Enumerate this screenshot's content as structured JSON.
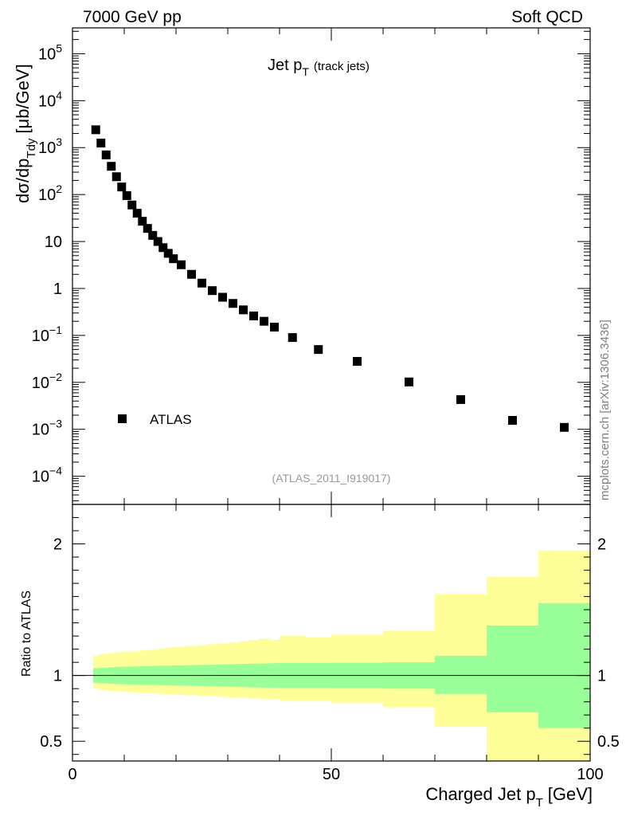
{
  "header": {
    "left": "7000 GeV pp",
    "right": "Soft QCD"
  },
  "side_note": "mcplots.cern.ch [arXiv:1306.3436]",
  "chart_data": [
    {
      "type": "scatter",
      "title": "Jet p",
      "title_subscript": "T",
      "title_suffix": "(track jets)",
      "analysis_id": "(ATLAS_2011_I919017)",
      "ylabel": "dσ/dp",
      "ylabel_subscript": "Tdy",
      "ylabel_unit": "[μb/GeV]",
      "yscale": "log",
      "xlim": [
        0,
        100
      ],
      "ylim_log10": [
        -4.6,
        5.55
      ],
      "y_tick_labels": [
        {
          "exp": 5,
          "label": "10",
          "sup": "5"
        },
        {
          "exp": 4,
          "label": "10",
          "sup": "4"
        },
        {
          "exp": 3,
          "label": "10",
          "sup": "3"
        },
        {
          "exp": 2,
          "label": "10",
          "sup": "2"
        },
        {
          "exp": 1,
          "label": "10",
          "sup": ""
        },
        {
          "exp": 0,
          "label": "1",
          "sup": ""
        },
        {
          "exp": -1,
          "label": "10",
          "sup": "−1"
        },
        {
          "exp": -2,
          "label": "10",
          "sup": "−2"
        },
        {
          "exp": -3,
          "label": "10",
          "sup": "−3"
        },
        {
          "exp": -4,
          "label": "10",
          "sup": "−4"
        }
      ],
      "legend": {
        "label": "ATLAS",
        "position": "lower-left",
        "color": "#000000"
      },
      "series": [
        {
          "name": "ATLAS",
          "marker": "square",
          "color": "#000000",
          "x": [
            4.5,
            5.5,
            6.5,
            7.5,
            8.5,
            9.5,
            10.5,
            11.5,
            12.5,
            13.5,
            14.5,
            15.5,
            16.5,
            17.5,
            18.5,
            19.5,
            21,
            23,
            25,
            27,
            29,
            31,
            33,
            35,
            37,
            39,
            42.5,
            47.5,
            55,
            65,
            75,
            85,
            95
          ],
          "y": [
            2400,
            1250,
            700,
            400,
            240,
            145,
            95,
            60,
            40,
            27,
            19,
            13.5,
            10,
            7.4,
            5.6,
            4.3,
            3.2,
            2.0,
            1.3,
            0.9,
            0.65,
            0.48,
            0.35,
            0.26,
            0.2,
            0.15,
            0.09,
            0.05,
            0.028,
            0.0102,
            0.0043,
            0.00155,
            0.0011
          ]
        }
      ]
    },
    {
      "type": "area",
      "ylabel": "Ratio to ATLAS",
      "xlabel": "Charged Jet p",
      "xlabel_subscript": "T",
      "xlabel_unit": "[GeV]",
      "xlim": [
        0,
        100
      ],
      "ylim": [
        0.35,
        2.3
      ],
      "x_ticks": [
        0,
        50,
        100
      ],
      "y_ticks": [
        0.5,
        1,
        2
      ],
      "reference_line": 1,
      "bin_edges": [
        4,
        5,
        6,
        7,
        8,
        9,
        10,
        11,
        12,
        13,
        14,
        15,
        16,
        17,
        18,
        19,
        20,
        22,
        24,
        26,
        28,
        30,
        32,
        34,
        36,
        38,
        40,
        45,
        50,
        60,
        70,
        80,
        90,
        100
      ],
      "bands": [
        {
          "name": "stat",
          "color": "#99ff99",
          "low": [
            0.945,
            0.942,
            0.94,
            0.938,
            0.936,
            0.934,
            0.933,
            0.932,
            0.931,
            0.93,
            0.929,
            0.928,
            0.927,
            0.926,
            0.925,
            0.924,
            0.923,
            0.921,
            0.92,
            0.918,
            0.916,
            0.914,
            0.912,
            0.91,
            0.908,
            0.906,
            0.905,
            0.905,
            0.903,
            0.9,
            0.86,
            0.72,
            0.6
          ],
          "high": [
            1.055,
            1.058,
            1.06,
            1.062,
            1.064,
            1.066,
            1.067,
            1.068,
            1.069,
            1.07,
            1.071,
            1.072,
            1.073,
            1.074,
            1.075,
            1.076,
            1.077,
            1.079,
            1.08,
            1.082,
            1.084,
            1.086,
            1.088,
            1.09,
            1.092,
            1.094,
            1.095,
            1.095,
            1.097,
            1.1,
            1.15,
            1.38,
            1.55
          ]
        },
        {
          "name": "total",
          "color": "#ffff99",
          "low": [
            0.9,
            0.893,
            0.888,
            0.884,
            0.88,
            0.877,
            0.875,
            0.872,
            0.87,
            0.868,
            0.866,
            0.864,
            0.862,
            0.86,
            0.858,
            0.856,
            0.853,
            0.85,
            0.846,
            0.842,
            0.838,
            0.834,
            0.83,
            0.826,
            0.822,
            0.818,
            0.81,
            0.81,
            0.79,
            0.76,
            0.61,
            0.35,
            0.35
          ],
          "high": [
            1.15,
            1.16,
            1.165,
            1.17,
            1.175,
            1.18,
            1.182,
            1.185,
            1.188,
            1.19,
            1.193,
            1.196,
            1.2,
            1.205,
            1.21,
            1.215,
            1.22,
            1.225,
            1.23,
            1.238,
            1.245,
            1.25,
            1.26,
            1.27,
            1.28,
            1.27,
            1.3,
            1.29,
            1.31,
            1.34,
            1.62,
            1.75,
            1.95
          ]
        }
      ]
    }
  ]
}
